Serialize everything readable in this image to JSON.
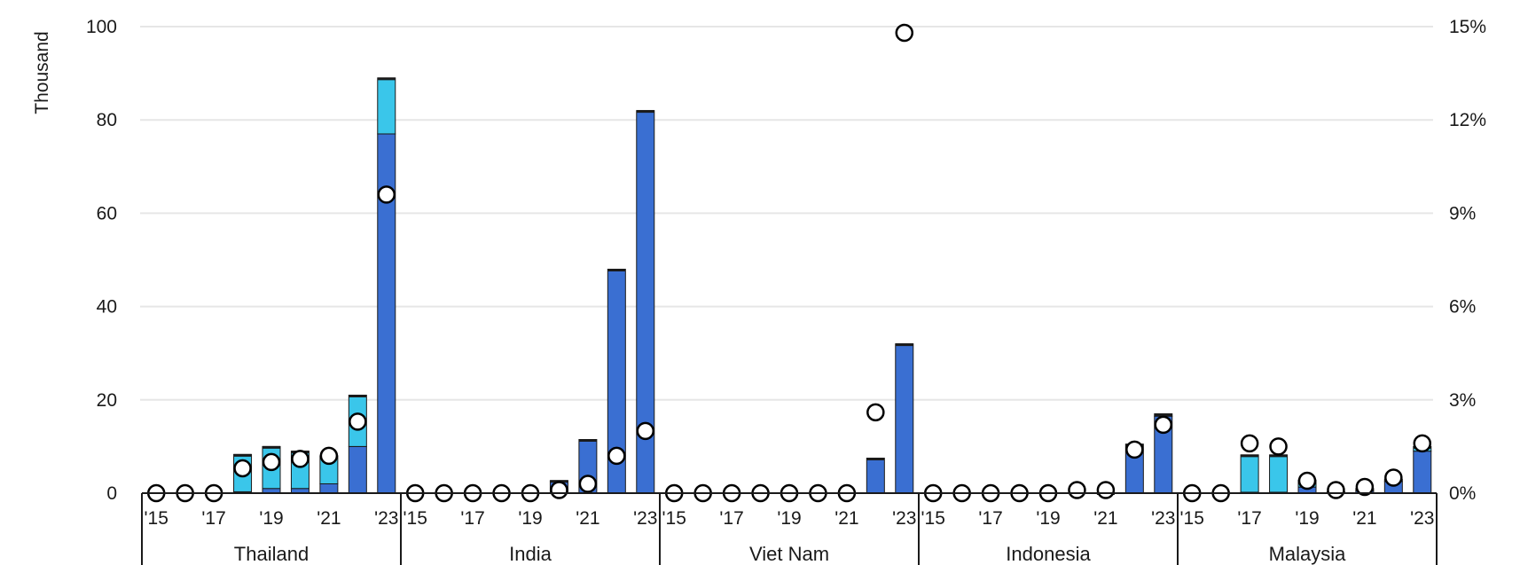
{
  "chart_data": {
    "type": "bar",
    "subtype": "stacked-bar-with-dot-overlay",
    "left_axis": {
      "label": "Thousand",
      "range": [
        0,
        100
      ],
      "ticks": [
        "0",
        "20",
        "40",
        "60",
        "80",
        "100"
      ]
    },
    "right_axis": {
      "label": "",
      "range": [
        0,
        15
      ],
      "ticks": [
        "0%",
        "3%",
        "6%",
        "9%",
        "12%",
        "15%"
      ]
    },
    "grid": true,
    "legend": "none",
    "years": [
      "2015",
      "2016",
      "2017",
      "2018",
      "2019",
      "2020",
      "2021",
      "2022",
      "2023"
    ],
    "year_tick_labels": [
      "'15",
      "",
      "'17",
      "",
      "'19",
      "",
      "'21",
      "",
      "'23"
    ],
    "colors": {
      "bev": "#3a6fd2",
      "phev": "#3ac6ea",
      "dot_fill": "#ffffff",
      "dot_stroke": "#000000",
      "bar_edge": "#1a1a1a",
      "grid": "#e6e6e6"
    },
    "groups": [
      {
        "country": "Thailand",
        "bev": [
          0,
          0,
          0,
          0.3,
          1,
          1,
          2,
          10,
          77
        ],
        "phev": [
          0,
          0,
          0,
          8,
          9,
          8,
          6,
          11,
          12
        ],
        "share_pct": [
          0,
          0,
          0,
          0.8,
          1.0,
          1.1,
          1.2,
          2.3,
          9.6
        ]
      },
      {
        "country": "India",
        "bev": [
          0,
          0,
          0,
          0,
          0,
          2.5,
          11.5,
          48,
          82
        ],
        "phev": [
          0,
          0,
          0,
          0,
          0,
          0.2,
          0,
          0,
          0
        ],
        "share_pct": [
          0,
          0,
          0,
          0,
          0,
          0.1,
          0.3,
          1.2,
          2.0
        ]
      },
      {
        "country": "Viet Nam",
        "bev": [
          0,
          0,
          0,
          0,
          0,
          0,
          0,
          7.5,
          32
        ],
        "phev": [
          0,
          0,
          0,
          0,
          0,
          0,
          0,
          0,
          0
        ],
        "share_pct": [
          0,
          0,
          0,
          0,
          0,
          0,
          0,
          2.6,
          14.8
        ]
      },
      {
        "country": "Indonesia",
        "bev": [
          0,
          0,
          0,
          0,
          0,
          0,
          0.1,
          10.5,
          16.5
        ],
        "phev": [
          0,
          0,
          0,
          0,
          0,
          0,
          0,
          0,
          0.5
        ],
        "share_pct": [
          0,
          0,
          0,
          0,
          0,
          0.1,
          0.1,
          1.4,
          2.2
        ]
      },
      {
        "country": "Malaysia",
        "bev": [
          0,
          0,
          0.2,
          0.2,
          1.3,
          0.3,
          0.5,
          2.5,
          9
        ],
        "phev": [
          0,
          0,
          8,
          8,
          1.5,
          0,
          0.5,
          0.5,
          1
        ],
        "share_pct": [
          0,
          0,
          1.6,
          1.5,
          0.4,
          0.1,
          0.2,
          0.5,
          1.6
        ]
      }
    ]
  }
}
